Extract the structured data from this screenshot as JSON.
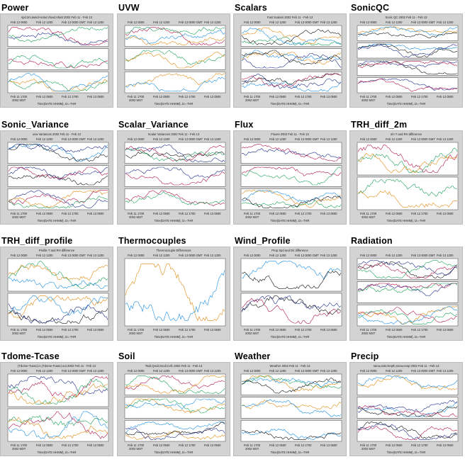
{
  "panels": [
    {
      "title": "Power",
      "subtitle": "spd.2m,twind+solar,Vload,Vbatt 2002 Feb 11 - Feb 13",
      "rows": 3
    },
    {
      "title": "UVW",
      "subtitle": "",
      "rows": 3
    },
    {
      "title": "Scalars",
      "subtitle": "Fast Scalars 2002 Feb 11 - Feb 13",
      "rows": 3
    },
    {
      "title": "SonicQC",
      "subtitle": "Sonic QC 2002 Feb 11 - Feb 13",
      "rows": 4
    },
    {
      "title": "Sonic_Variance",
      "subtitle": "uvw Variances 2002 Feb 11 - Feb 13",
      "rows": 3
    },
    {
      "title": "Scalar_Variance",
      "subtitle": "Scalar Variances 2002 Feb 11 - Feb 13",
      "rows": 3
    },
    {
      "title": "Flux",
      "subtitle": "Fluxes 2002 Feb 11 - Feb 13",
      "rows": 3
    },
    {
      "title": "TRH_diff_2m",
      "subtitle": "2m T and RH difference",
      "rows": 2
    },
    {
      "title": "TRH_diff_profile",
      "subtitle": "Profile T and RH difference",
      "rows": 2
    },
    {
      "title": "Thermocouples",
      "subtitle": "Thermocouple Differences",
      "rows": 1
    },
    {
      "title": "Wind_Profile",
      "subtitle": "Prop Spd and Dir difference",
      "rows": 2
    },
    {
      "title": "Radiation",
      "subtitle": "",
      "rows": 3
    },
    {
      "title": "Tdome-Tcase",
      "subtitle": "(Tdome-Tcase).in,(Tdome-Tcase).out 2002 Feb 11 - Feb 13",
      "rows": 2
    },
    {
      "title": "Soil",
      "subtitle": "Tsoil,Qsoil,Gsoil,Cvfc 2002 Feb 11 - Feb 13",
      "rows": 3
    },
    {
      "title": "Weather",
      "subtitle": "Weather 2002 Feb 11 - Feb 13",
      "rows": 3
    },
    {
      "title": "Precip",
      "subtitle": "raina,rainr,Depth,snow,exsp 2002 Feb 11 - Feb 13",
      "rows": 3
    }
  ],
  "axis_top": [
    "Feb 12 0000",
    "Feb 12 1200",
    "Feb 13 0000 GMT",
    "Feb 13 1200"
  ],
  "axis_bottom": [
    "Feb 11 1700",
    "Feb 12 0500",
    "Feb 12 1700",
    "Feb 13 0500"
  ],
  "axis_bottom_left": "2002 MST",
  "axis_caption": "Time(DATE HHMM), tz=-7HR",
  "series_colors": [
    "#1f2a8a",
    "#b0154c",
    "#1aa15a",
    "#e08a12",
    "#1b8ee0",
    "#111111"
  ]
}
